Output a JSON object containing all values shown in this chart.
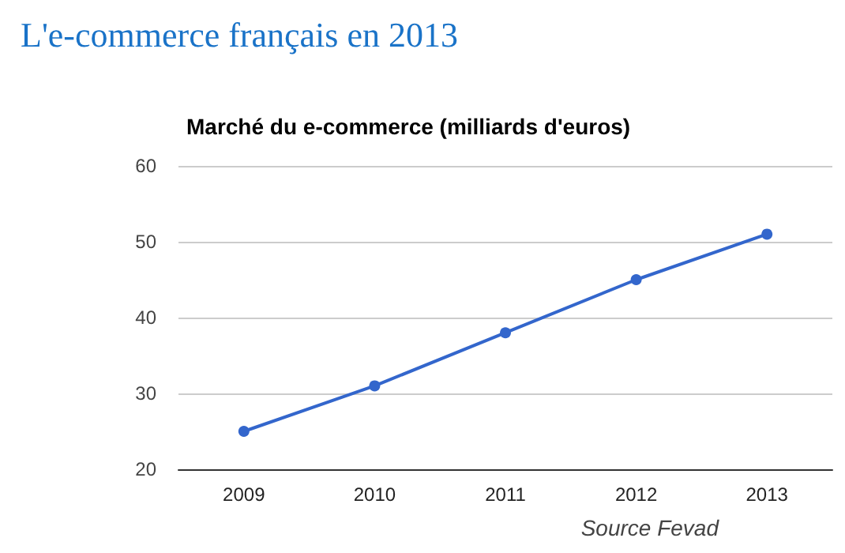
{
  "chart_data": {
    "type": "line",
    "title": "L'e-commerce français en 2013",
    "subtitle": "Marché du e-commerce (milliards d'euros)",
    "categories": [
      "2009",
      "2010",
      "2011",
      "2012",
      "2013"
    ],
    "series": [
      {
        "color": "#3366cc",
        "values": [
          25,
          31,
          38,
          45,
          51
        ]
      }
    ],
    "ylim": [
      20,
      60
    ],
    "yticks": [
      20,
      30,
      40,
      50,
      60
    ],
    "grid": "y",
    "marker": "circle",
    "line_style": "solid",
    "annotations": [
      "Source Fevad"
    ]
  }
}
